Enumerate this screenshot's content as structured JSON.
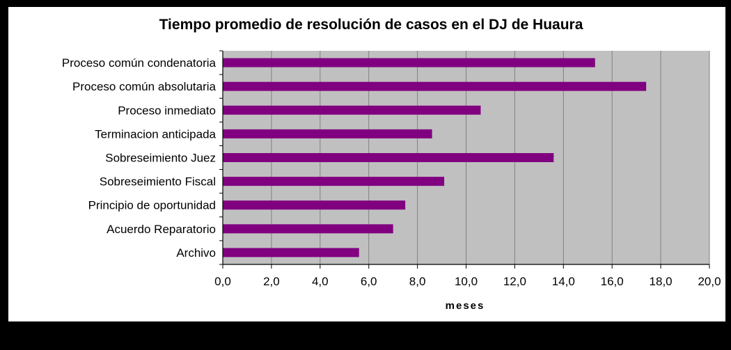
{
  "chart_data": {
    "type": "bar",
    "orientation": "horizontal",
    "title": "Tiempo promedio de resolución de casos en el DJ de Huaura",
    "xlabel": "meses",
    "ylabel": "",
    "categories": [
      "Proceso común condenatoria",
      "Proceso común absolutaria",
      "Proceso inmediato",
      "Terminacion anticipada",
      "Sobreseimiento Juez",
      "Sobreseimiento Fiscal",
      "Principio de oportunidad",
      "Acuerdo Reparatorio",
      "Archivo"
    ],
    "values": [
      15.3,
      17.4,
      10.6,
      8.6,
      13.6,
      9.1,
      7.5,
      7.0,
      5.6
    ],
    "xlim": [
      0,
      20
    ],
    "xticks": [
      "0,0",
      "2,0",
      "4,0",
      "6,0",
      "8,0",
      "10,0",
      "12,0",
      "14,0",
      "16,0",
      "18,0",
      "20,0"
    ],
    "grid": true,
    "legend": "none",
    "colors": {
      "bar": "#800080",
      "plot_background": "#c0c0c0",
      "gridline": "#808080"
    }
  }
}
